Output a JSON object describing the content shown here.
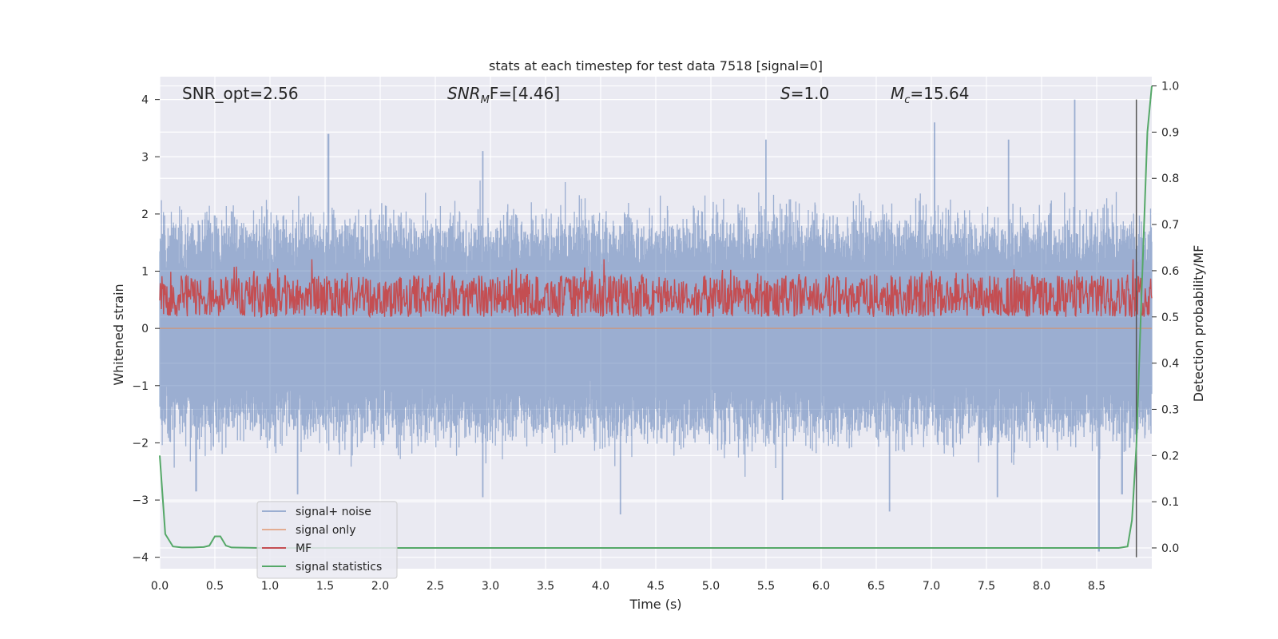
{
  "chart_data": {
    "type": "line",
    "title": "stats at each timestep for test data 7518 [signal=0]",
    "xlabel": "Time (s)",
    "ylabel": "Whitened strain",
    "ylabel_right": "Detection probability/MF",
    "xlim": [
      0.0,
      9.0
    ],
    "ylim": [
      -4.2,
      4.4
    ],
    "ylim_right": [
      -0.045,
      1.02
    ],
    "x_ticks": [
      "0.0",
      "0.5",
      "1.0",
      "1.5",
      "2.0",
      "2.5",
      "3.0",
      "3.5",
      "4.0",
      "4.5",
      "5.0",
      "5.5",
      "6.0",
      "6.5",
      "7.0",
      "7.5",
      "8.0",
      "8.5"
    ],
    "y_ticks": [
      "4",
      "3",
      "2",
      "1",
      "0",
      "−1",
      "−2",
      "−3",
      "−4"
    ],
    "y_right_ticks": [
      "1.0",
      "0.9",
      "0.8",
      "0.7",
      "0.6",
      "0.5",
      "0.4",
      "0.3",
      "0.2",
      "0.1",
      "0.0"
    ],
    "grid": true,
    "background": "#eaeaf2",
    "annotations": {
      "snr_opt": "SNR_opt=2.56",
      "snr_mf_main": "SNR",
      "snr_mf_sub": "M",
      "snr_mf_rest": "F=[4.46]",
      "s_main": "S",
      "s_rest": "=1.0",
      "mc_main": "M",
      "mc_sub": "c",
      "mc_rest": "=15.64"
    },
    "legend": {
      "position": "lower-left",
      "entries": [
        "signal+ noise",
        "signal only",
        "MF",
        "signal statistics"
      ]
    },
    "series": [
      {
        "name": "signal+ noise",
        "color": "#4c72b0",
        "axis": "left",
        "description": "dense noise envelope",
        "x_range": [
          0.0,
          9.0
        ],
        "typical_range": [
          -1.6,
          1.6
        ],
        "peaks_x": [
          1.53,
          2.93,
          5.5,
          7.03,
          7.7,
          8.3
        ],
        "peaks_y": [
          3.4,
          3.1,
          3.3,
          3.6,
          3.3,
          4.0
        ],
        "troughs_x": [
          0.33,
          1.25,
          2.93,
          4.18,
          5.65,
          6.62,
          7.6,
          8.52,
          8.73
        ],
        "troughs_y": [
          -2.85,
          -2.9,
          -2.95,
          -3.25,
          -3.0,
          -3.2,
          -2.95,
          -3.9,
          -2.9
        ]
      },
      {
        "name": "signal only",
        "color": "#dd8452",
        "axis": "left",
        "x": [
          0.0,
          9.0
        ],
        "y": [
          0.0,
          0.0
        ]
      },
      {
        "name": "MF",
        "color": "#c44e52",
        "axis": "right",
        "description": "dense matched-filter trace",
        "x_range": [
          0.0,
          9.0
        ],
        "typical_range": [
          0.5,
          0.59
        ],
        "peaks_x": [
          1.38,
          4.03,
          7.0,
          8.83
        ],
        "peaks_y": [
          0.625,
          0.625,
          0.6,
          0.625
        ]
      },
      {
        "name": "signal statistics",
        "color": "#55a868",
        "axis": "right",
        "x": [
          0.0,
          0.05,
          0.12,
          0.2,
          0.3,
          0.4,
          0.45,
          0.5,
          0.55,
          0.6,
          0.65,
          0.9,
          1.0,
          1.5,
          2.0,
          3.0,
          4.0,
          5.0,
          6.0,
          7.0,
          8.0,
          8.5,
          8.7,
          8.78,
          8.82,
          8.86,
          8.9,
          8.96,
          9.0
        ],
        "y": [
          0.2,
          0.03,
          0.003,
          0.001,
          0.001,
          0.002,
          0.005,
          0.025,
          0.025,
          0.005,
          0.001,
          0.0,
          0.0,
          0.0,
          0.0,
          0.0,
          0.0,
          0.0,
          0.0,
          0.0,
          0.0,
          0.0,
          0.0,
          0.003,
          0.06,
          0.22,
          0.5,
          0.9,
          1.0
        ]
      }
    ],
    "vline": {
      "x": 8.86,
      "color": "#555555",
      "y_range": [
        -4.0,
        4.0
      ]
    }
  }
}
